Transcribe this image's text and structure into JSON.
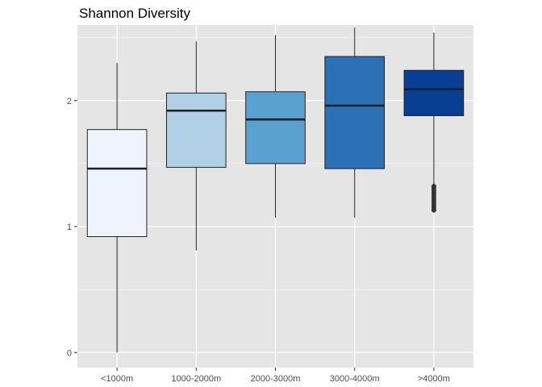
{
  "chart_data": {
    "type": "boxplot",
    "title": "Shannon Diversity",
    "xlabel": "",
    "ylabel": "",
    "ylim": [
      -0.12,
      2.6
    ],
    "yticks": [
      0,
      1,
      2
    ],
    "grid": true,
    "legend": "none",
    "colors": {
      "panel": "#e5e5e5",
      "grid": "#ffffff",
      "box_outline": "#222222",
      "median": "#1f1f1f",
      "tick_text": "#4d4d4d"
    },
    "categories": [
      "<1000m",
      "1000-2000m",
      "2000-3000m",
      "3000-4000m",
      ">4000m"
    ],
    "boxes": [
      {
        "category": "<1000m",
        "min": 0.0,
        "q1": 0.92,
        "median": 1.46,
        "q3": 1.77,
        "max": 2.3,
        "fill": "#eef3fe",
        "outliers": []
      },
      {
        "category": "1000-2000m",
        "min": 0.81,
        "q1": 1.47,
        "median": 1.92,
        "q3": 2.06,
        "max": 2.47,
        "fill": "#b0d0e6",
        "outliers": []
      },
      {
        "category": "2000-3000m",
        "min": 1.07,
        "q1": 1.5,
        "median": 1.85,
        "q3": 2.07,
        "max": 2.52,
        "fill": "#5aa1d0",
        "outliers": []
      },
      {
        "category": "3000-4000m",
        "min": 1.07,
        "q1": 1.46,
        "median": 1.96,
        "q3": 2.35,
        "max": 2.58,
        "fill": "#2c71b6",
        "outliers": []
      },
      {
        "category": ">4000m",
        "min": 1.33,
        "q1": 1.88,
        "median": 2.09,
        "q3": 2.24,
        "max": 2.54,
        "fill": "#083f93",
        "outliers": [
          1.13,
          1.15,
          1.17,
          1.19,
          1.21,
          1.23,
          1.25,
          1.27,
          1.29,
          1.31,
          1.32
        ]
      }
    ]
  }
}
